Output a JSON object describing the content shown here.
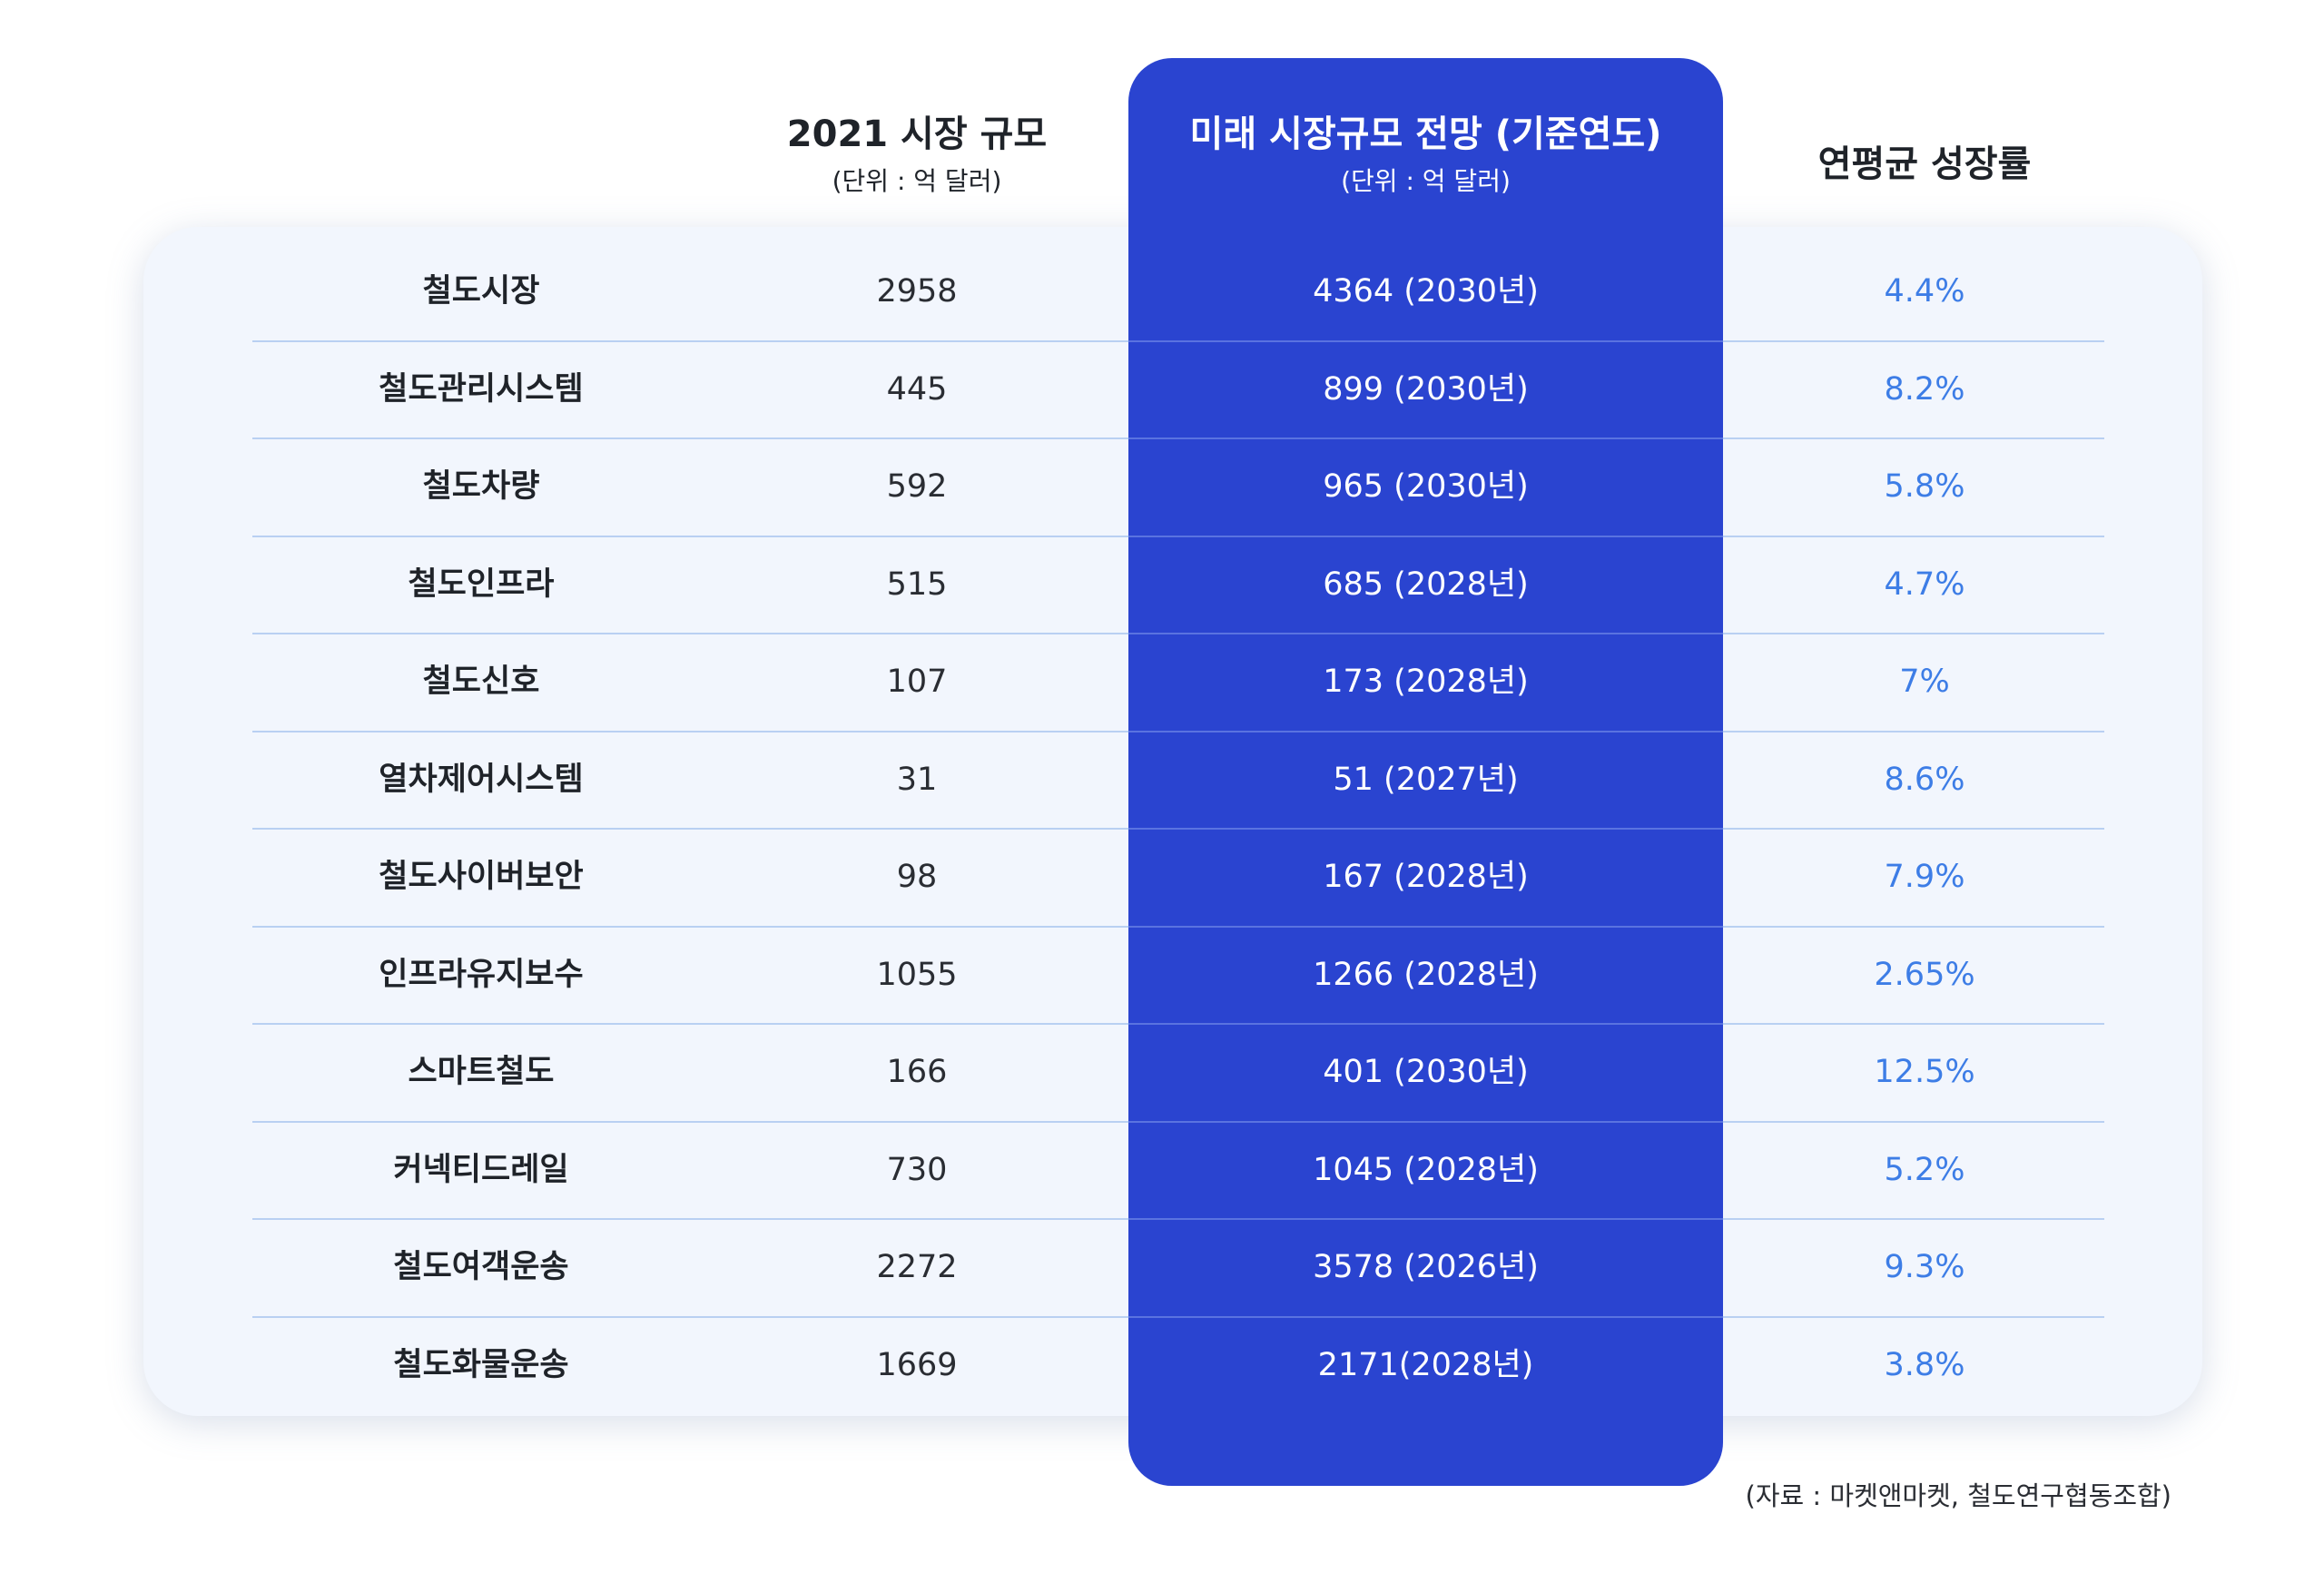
{
  "headers": {
    "market_size_title": "2021 시장 규모",
    "market_size_unit": "(단위 : 억 달러)",
    "forecast_title": "미래 시장규모 전망 (기준연도)",
    "forecast_unit": "(단위 : 억 달러)",
    "growth_title": "연평균 성장률"
  },
  "rows": [
    {
      "name": "철도시장",
      "size_2021": "2958",
      "forecast": "4364 (2030년)",
      "growth": "4.4%"
    },
    {
      "name": "철도관리시스템",
      "size_2021": "445",
      "forecast": "899 (2030년)",
      "growth": "8.2%"
    },
    {
      "name": "철도차량",
      "size_2021": "592",
      "forecast": "965 (2030년)",
      "growth": "5.8%"
    },
    {
      "name": "철도인프라",
      "size_2021": "515",
      "forecast": "685 (2028년)",
      "growth": "4.7%"
    },
    {
      "name": "철도신호",
      "size_2021": "107",
      "forecast": "173 (2028년)",
      "growth": "7%"
    },
    {
      "name": "열차제어시스템",
      "size_2021": "31",
      "forecast": "51 (2027년)",
      "growth": "8.6%"
    },
    {
      "name": "철도사이버보안",
      "size_2021": "98",
      "forecast": "167 (2028년)",
      "growth": "7.9%"
    },
    {
      "name": "인프라유지보수",
      "size_2021": "1055",
      "forecast": "1266 (2028년)",
      "growth": "2.65%"
    },
    {
      "name": "스마트철도",
      "size_2021": "166",
      "forecast": "401 (2030년)",
      "growth": "12.5%"
    },
    {
      "name": "커넥티드레일",
      "size_2021": "730",
      "forecast": "1045 (2028년)",
      "growth": "5.2%"
    },
    {
      "name": "철도여객운송",
      "size_2021": "2272",
      "forecast": "3578 (2026년)",
      "growth": "9.3%"
    },
    {
      "name": "철도화물운송",
      "size_2021": "1669",
      "forecast": "2171(2028년)",
      "growth": "3.8%"
    }
  ],
  "source": "(자료 : 마켓앤마켓, 철도연구협동조합)",
  "colors": {
    "highlight_column": "#2a44d0",
    "card_background": "#f2f6fd",
    "growth_text": "#3d7de6",
    "divider": "#b9d0f2"
  }
}
